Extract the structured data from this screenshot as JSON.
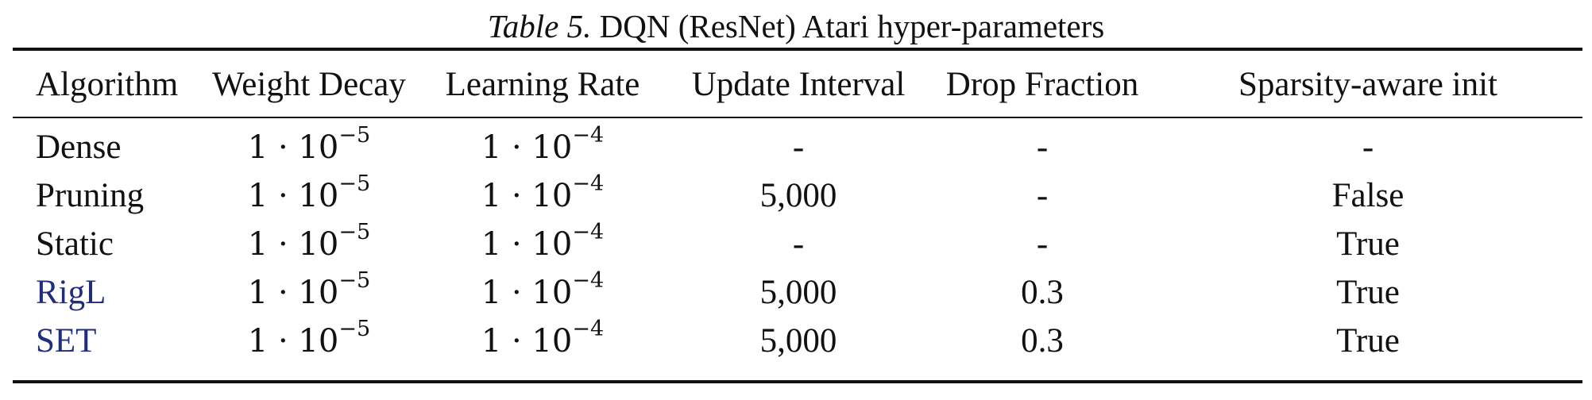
{
  "caption": {
    "label": "Table 5.",
    "text": "DQN (ResNet) Atari hyper-parameters"
  },
  "table": {
    "headers": [
      "Algorithm",
      "Weight Decay",
      "Learning Rate",
      "Update Interval",
      "Drop Fraction",
      "Sparsity-aware init"
    ],
    "rows": [
      {
        "algorithm": "Dense",
        "is_link": false,
        "weight_decay": {
          "base": "1 · 10",
          "exp": "−5"
        },
        "learning_rate": {
          "base": "1 · 10",
          "exp": "−4"
        },
        "update_interval": "-",
        "drop_fraction": "-",
        "sparsity_aware_init": "-"
      },
      {
        "algorithm": "Pruning",
        "is_link": false,
        "weight_decay": {
          "base": "1 · 10",
          "exp": "−5"
        },
        "learning_rate": {
          "base": "1 · 10",
          "exp": "−4"
        },
        "update_interval": "5,000",
        "drop_fraction": "-",
        "sparsity_aware_init": "False"
      },
      {
        "algorithm": "Static",
        "is_link": false,
        "weight_decay": {
          "base": "1 · 10",
          "exp": "−5"
        },
        "learning_rate": {
          "base": "1 · 10",
          "exp": "−4"
        },
        "update_interval": "-",
        "drop_fraction": "-",
        "sparsity_aware_init": "True"
      },
      {
        "algorithm": "RigL",
        "is_link": true,
        "weight_decay": {
          "base": "1 · 10",
          "exp": "−5"
        },
        "learning_rate": {
          "base": "1 · 10",
          "exp": "−4"
        },
        "update_interval": "5,000",
        "drop_fraction": "0.3",
        "sparsity_aware_init": "True"
      },
      {
        "algorithm": "SET",
        "is_link": true,
        "weight_decay": {
          "base": "1 · 10",
          "exp": "−5"
        },
        "learning_rate": {
          "base": "1 · 10",
          "exp": "−4"
        },
        "update_interval": "5,000",
        "drop_fraction": "0.3",
        "sparsity_aware_init": "True"
      }
    ]
  },
  "colors": {
    "text": "#111111",
    "link": "#1f2d7a",
    "rules": "#111111",
    "background": "#ffffff"
  }
}
